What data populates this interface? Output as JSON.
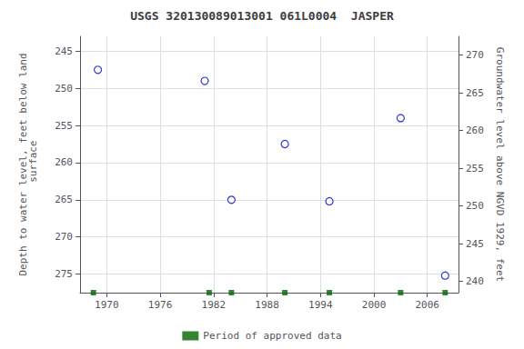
{
  "chart_data": {
    "type": "scatter",
    "title": "USGS 320130089013001 061L0004  JASPER",
    "ylabel": "Depth to water level, feet below land\n surface",
    "y2label": "Groundwater level above NGVD 1929, feet",
    "series": [
      {
        "type": "scatter",
        "color": "#0000cc",
        "marker": "circle",
        "x": [
          1969,
          1981,
          1984,
          1990,
          1995,
          2003,
          2008
        ],
        "values": [
          247.5,
          249.0,
          265.0,
          257.5,
          265.2,
          254.0,
          275.2
        ]
      },
      {
        "name": "Period of approved data",
        "type": "scatter",
        "color": "#006600",
        "marker": "square",
        "x": [
          1968.5,
          1981.5,
          1984.0,
          1990.0,
          1995.0,
          2003.0,
          2008.0
        ]
      }
    ],
    "xlim": [
      1967,
      2009.5
    ],
    "xticks": [
      1970,
      1976,
      1982,
      1988,
      1994,
      2000,
      2006
    ],
    "ylim": [
      277.5,
      243.0
    ],
    "yticks": [
      245,
      250,
      255,
      260,
      265,
      270,
      275
    ],
    "y2lim": [
      238.5,
      272.5
    ],
    "y2ticks": [
      270,
      265,
      260,
      255,
      250,
      245,
      240
    ],
    "grid": true,
    "legend": "bottom"
  }
}
